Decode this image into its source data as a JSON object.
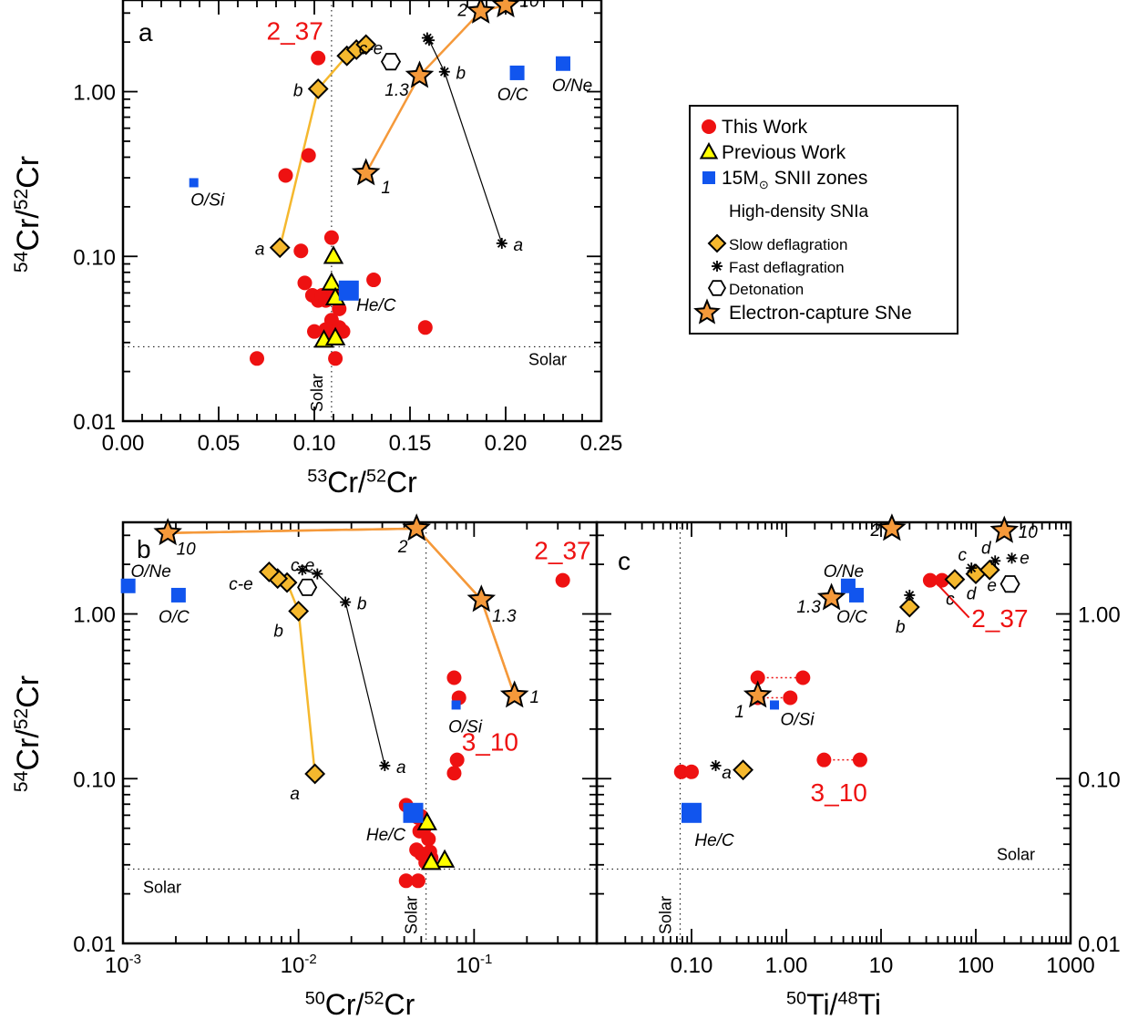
{
  "figure": {
    "legend": {
      "entries": [
        {
          "key": "this",
          "label": "This Work",
          "marker": "circle",
          "color": "#ee1111"
        },
        {
          "key": "prev",
          "label": "Previous Work",
          "marker": "triangle",
          "color": "#ffff00"
        },
        {
          "key": "snii",
          "label_main": "15M",
          "label_sub": "⊙",
          "label_rest": " SNII zones",
          "marker": "square",
          "color": "#1155ee"
        },
        {
          "key": "hd",
          "label": "High-density SNIa",
          "marker": "none"
        },
        {
          "key": "slow",
          "label": "Slow deflagration",
          "marker": "diamond",
          "color": "#f5b82e"
        },
        {
          "key": "fast",
          "label": "Fast deflagration",
          "marker": "asterisk",
          "color": "#000000"
        },
        {
          "key": "det",
          "label": "Detonation",
          "marker": "hexagon",
          "color": "#ffffff"
        },
        {
          "key": "ecsn",
          "label": "Electron-capture SNe",
          "marker": "star",
          "color": "#f5993a"
        }
      ]
    },
    "ylabel": {
      "sup1": "54",
      "mid": "Cr/",
      "sup2": "52",
      "end": "Cr"
    },
    "grain_labels": [
      "2_37",
      "3_10"
    ],
    "solar_label": "Solar"
  },
  "chart_data": [
    {
      "panel": "a",
      "type": "scatter",
      "xlabel": {
        "sup1": "53",
        "mid": "Cr/",
        "sup2": "52",
        "end": "Cr"
      },
      "x_scale": "linear",
      "y_scale": "log",
      "xlim": [
        0.0,
        0.25
      ],
      "ylim": [
        0.01,
        3.6
      ],
      "xticks": [
        0.0,
        0.05,
        0.1,
        0.15,
        0.2,
        0.25
      ],
      "xtick_labels": [
        "0.00",
        "0.05",
        "0.10",
        "0.15",
        "0.20",
        "0.25"
      ],
      "yticks": [
        0.01,
        0.1,
        1.0
      ],
      "ytick_labels": [
        "0.01",
        "0.10",
        "1.00"
      ],
      "solar": {
        "x": 0.109,
        "y": 0.0283
      },
      "this_work": [
        [
          0.102,
          1.6
        ],
        [
          0.097,
          0.41
        ],
        [
          0.085,
          0.31
        ],
        [
          0.109,
          0.13
        ],
        [
          0.093,
          0.108
        ],
        [
          0.095,
          0.069
        ],
        [
          0.099,
          0.058
        ],
        [
          0.102,
          0.054
        ],
        [
          0.104,
          0.058
        ],
        [
          0.106,
          0.054
        ],
        [
          0.11,
          0.06
        ],
        [
          0.113,
          0.048
        ],
        [
          0.109,
          0.041
        ],
        [
          0.113,
          0.037
        ],
        [
          0.106,
          0.036
        ],
        [
          0.11,
          0.033
        ],
        [
          0.115,
          0.035
        ],
        [
          0.131,
          0.072
        ],
        [
          0.158,
          0.037
        ],
        [
          0.07,
          0.024
        ],
        [
          0.111,
          0.024
        ],
        [
          0.1,
          0.035
        ]
      ],
      "previous_work": [
        [
          0.11,
          0.1
        ],
        [
          0.109,
          0.069
        ],
        [
          0.111,
          0.056
        ],
        [
          0.105,
          0.031
        ],
        [
          0.111,
          0.032
        ]
      ],
      "snii": [
        {
          "x": 0.037,
          "y": 0.28,
          "label": "O/Si",
          "big": false
        },
        {
          "x": 0.118,
          "y": 0.062,
          "label": "He/C",
          "big": true
        },
        {
          "x": 0.206,
          "y": 1.3,
          "label": "O/C",
          "big": false
        },
        {
          "x": 0.23,
          "y": 1.48,
          "label": "O/Ne",
          "big": false
        }
      ],
      "slow_deflagration": [
        {
          "x": 0.082,
          "y": 0.113,
          "label": "a"
        },
        {
          "x": 0.102,
          "y": 1.04,
          "label": "b"
        },
        {
          "x": 0.117,
          "y": 1.65,
          "label": ""
        },
        {
          "x": 0.122,
          "y": 1.8,
          "label": ""
        },
        {
          "x": 0.127,
          "y": 1.93,
          "label": ""
        }
      ],
      "fast_deflagration": [
        {
          "x": 0.198,
          "y": 0.12,
          "label": "a"
        },
        {
          "x": 0.168,
          "y": 1.32,
          "label": "b"
        },
        {
          "x": 0.16,
          "y": 2.05,
          "label": ""
        },
        {
          "x": 0.159,
          "y": 2.12,
          "label": ""
        }
      ],
      "detonation": [
        {
          "x": 0.14,
          "y": 1.52,
          "label": "c-e"
        }
      ],
      "ecsn": [
        {
          "x": 0.127,
          "y": 0.32,
          "label": "1"
        },
        {
          "x": 0.155,
          "y": 1.25,
          "label": "1.3"
        },
        {
          "x": 0.187,
          "y": 3.07,
          "label": "2"
        },
        {
          "x": 0.2,
          "y": 3.35,
          "label": "10"
        }
      ],
      "grain_labels": [
        {
          "text": "2_37",
          "x": 0.075,
          "y": 2.07
        }
      ]
    },
    {
      "panel": "b",
      "type": "scatter",
      "xlabel": {
        "sup1": "50",
        "mid": "Cr/",
        "sup2": "52",
        "end": "Cr"
      },
      "x_scale": "log",
      "y_scale": "log",
      "xlim": [
        0.001,
        0.5
      ],
      "ylim": [
        0.01,
        3.6
      ],
      "xticks": [
        0.001,
        0.01,
        0.1
      ],
      "xtick_labels": [
        {
          "base": "10",
          "exp": "-3"
        },
        {
          "base": "10",
          "exp": "-2"
        },
        {
          "base": "10",
          "exp": "-1"
        }
      ],
      "yticks": [
        0.01,
        0.1,
        1.0
      ],
      "ytick_labels": [
        "0.01",
        "0.10",
        "1.00"
      ],
      "solar": {
        "x": 0.0533,
        "y": 0.0283
      },
      "this_work": [
        [
          0.32,
          1.6
        ],
        [
          0.077,
          0.41
        ],
        [
          0.082,
          0.31
        ],
        [
          0.08,
          0.13
        ],
        [
          0.077,
          0.108
        ],
        [
          0.041,
          0.069
        ],
        [
          0.045,
          0.064
        ],
        [
          0.048,
          0.058
        ],
        [
          0.05,
          0.059
        ],
        [
          0.052,
          0.05
        ],
        [
          0.049,
          0.048
        ],
        [
          0.055,
          0.043
        ],
        [
          0.047,
          0.037
        ],
        [
          0.05,
          0.035
        ],
        [
          0.056,
          0.036
        ],
        [
          0.057,
          0.033
        ],
        [
          0.052,
          0.034
        ],
        [
          0.041,
          0.024
        ],
        [
          0.048,
          0.024
        ],
        [
          0.053,
          0.031
        ]
      ],
      "previous_work": [
        [
          0.054,
          0.054
        ],
        [
          0.068,
          0.032
        ],
        [
          0.057,
          0.031
        ]
      ],
      "snii": [
        {
          "x": 0.00107,
          "y": 1.48,
          "label": "O/Ne",
          "big": false
        },
        {
          "x": 0.00207,
          "y": 1.3,
          "label": "O/C",
          "big": false
        },
        {
          "x": 0.079,
          "y": 0.28,
          "label": "O/Si",
          "big": false
        },
        {
          "x": 0.045,
          "y": 0.062,
          "label": "He/C",
          "big": true
        }
      ],
      "slow_deflagration": [
        {
          "x": 0.0124,
          "y": 0.107,
          "label": "a"
        },
        {
          "x": 0.01,
          "y": 1.04,
          "label": "b"
        },
        {
          "x": 0.0086,
          "y": 1.55,
          "label": ""
        },
        {
          "x": 0.0076,
          "y": 1.64,
          "label": ""
        },
        {
          "x": 0.0068,
          "y": 1.8,
          "label": ""
        }
      ],
      "fast_deflagration": [
        {
          "x": 0.031,
          "y": 0.12,
          "label": "a"
        },
        {
          "x": 0.0185,
          "y": 1.18,
          "label": "b"
        },
        {
          "x": 0.0128,
          "y": 1.75,
          "label": ""
        },
        {
          "x": 0.0105,
          "y": 1.85,
          "label": ""
        }
      ],
      "detonation": [
        {
          "x": 0.0112,
          "y": 1.45,
          "label": "c-e"
        }
      ],
      "ecsn": [
        {
          "x": 0.17,
          "y": 0.32,
          "label": "1"
        },
        {
          "x": 0.11,
          "y": 1.22,
          "label": "1.3"
        },
        {
          "x": 0.047,
          "y": 3.3,
          "label": "2"
        },
        {
          "x": 0.0018,
          "y": 3.1,
          "label": "10"
        }
      ],
      "grain_labels": [
        {
          "text": "2_37",
          "x": 0.22,
          "y": 2.15
        },
        {
          "text": "3_10",
          "x": 0.085,
          "y": 0.148
        }
      ]
    },
    {
      "panel": "c",
      "type": "scatter",
      "xlabel": {
        "sup1": "50",
        "mid": "Ti/",
        "sup2": "48",
        "end": "Ti"
      },
      "x_scale": "log",
      "y_scale": "log",
      "xlim": [
        0.01,
        1000
      ],
      "ylim": [
        0.01,
        3.6
      ],
      "xticks": [
        0.1,
        1,
        10,
        100,
        1000
      ],
      "xtick_labels": [
        "0.10",
        "1.00",
        "10",
        "100",
        "1000"
      ],
      "yticks": [
        0.01,
        0.1,
        1.0
      ],
      "ytick_labels": [
        "0.01",
        "0.10",
        "1.00"
      ],
      "solar": {
        "x": 0.0757,
        "y": 0.0283
      },
      "this_work": [
        [
          0.078,
          0.11
        ],
        [
          0.1,
          0.11
        ],
        [
          0.5,
          0.41
        ],
        [
          1.5,
          0.41
        ],
        [
          0.5,
          0.31
        ],
        [
          1.1,
          0.31
        ],
        [
          2.5,
          0.13
        ],
        [
          6.0,
          0.13
        ],
        [
          33,
          1.6
        ],
        [
          44,
          1.6
        ]
      ],
      "previous_work": [],
      "snii": [
        {
          "x": 0.1,
          "y": 0.062,
          "label": "He/C",
          "big": true
        },
        {
          "x": 0.75,
          "y": 0.28,
          "label": "O/Si",
          "big": false
        },
        {
          "x": 4.5,
          "y": 1.48,
          "label": "O/Ne",
          "big": false
        },
        {
          "x": 5.5,
          "y": 1.3,
          "label": "O/C",
          "big": false
        }
      ],
      "slow_deflagration": [
        {
          "x": 0.35,
          "y": 0.113,
          "label": ""
        },
        {
          "x": 20,
          "y": 1.1,
          "label": "b"
        },
        {
          "x": 60,
          "y": 1.62,
          "label": "c"
        },
        {
          "x": 100,
          "y": 1.75,
          "label": "d"
        },
        {
          "x": 140,
          "y": 1.85,
          "label": ""
        }
      ],
      "fast_deflagration": [
        {
          "x": 0.18,
          "y": 0.12,
          "label": "a"
        },
        {
          "x": 20,
          "y": 1.3,
          "label": ""
        },
        {
          "x": 90,
          "y": 1.9,
          "label": "c"
        },
        {
          "x": 160,
          "y": 2.1,
          "label": "d"
        },
        {
          "x": 240,
          "y": 2.18,
          "label": "e"
        }
      ],
      "detonation": [
        {
          "x": 230,
          "y": 1.52,
          "label": "e"
        }
      ],
      "ecsn": [
        {
          "x": 0.5,
          "y": 0.32,
          "label": "1"
        },
        {
          "x": 3.0,
          "y": 1.25,
          "label": "1.3"
        },
        {
          "x": 13,
          "y": 3.3,
          "label": "2"
        },
        {
          "x": 200,
          "y": 3.2,
          "label": "10"
        }
      ],
      "dotted_pairs": [
        [
          [
            0.5,
            0.41
          ],
          [
            1.5,
            0.41
          ]
        ],
        [
          [
            0.5,
            0.31
          ],
          [
            1.1,
            0.31
          ]
        ],
        [
          [
            2.5,
            0.13
          ],
          [
            6.0,
            0.13
          ]
        ]
      ],
      "grain_labels": [
        {
          "text": "2_37",
          "x": 90,
          "y": 0.83
        },
        {
          "text": "3_10",
          "x": 1.8,
          "y": 0.073
        }
      ],
      "grain_pointer": {
        "from": [
          40,
          1.5
        ],
        "to": [
          85,
          0.95
        ]
      }
    }
  ]
}
